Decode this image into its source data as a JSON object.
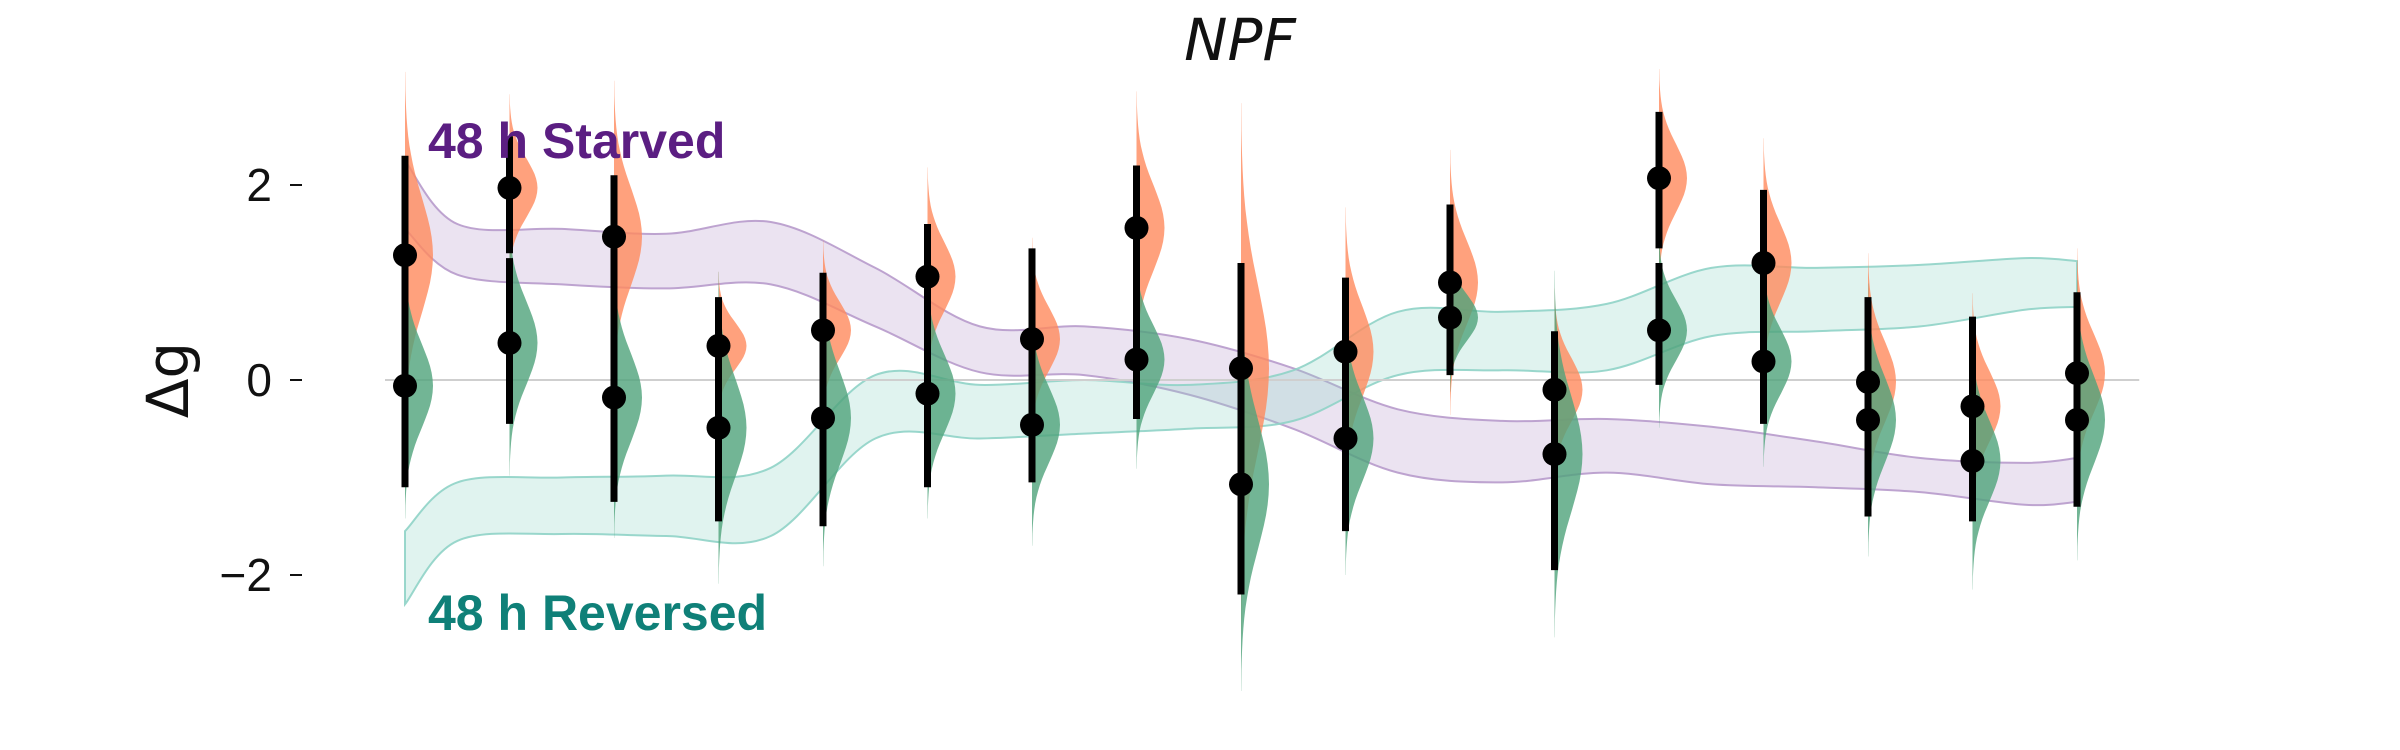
{
  "chart_data": {
    "type": "scatter",
    "title": "NPF",
    "xlabel": "",
    "ylabel": "Δg",
    "ylim": [
      -3.0,
      3.0
    ],
    "xlim": [
      0.0,
      17.5
    ],
    "yticks": [
      -2,
      0,
      2
    ],
    "ytick_labels": [
      "−2",
      "0",
      "2"
    ],
    "grid": false,
    "zero_line": true,
    "colors": {
      "starved_band": "#b79acb",
      "reversed_band": "#8fd3c6",
      "starved_label": "#5b1e82",
      "reversed_label": "#0f8078",
      "orange_density": "#ff8a5c",
      "green_density": "#4fa37a",
      "points": "#000000"
    },
    "annotations": [
      {
        "text": "48 h Starved",
        "color": "#5b1e82"
      },
      {
        "text": "48 h Reversed",
        "color": "#0f8078"
      }
    ],
    "series": [
      {
        "name": "48 h Starved",
        "color": "#ff8a5c",
        "x": [
          1,
          2,
          3,
          4,
          5,
          6,
          7,
          8,
          9,
          10,
          11,
          12,
          13,
          14,
          15,
          16,
          17
        ],
        "y": [
          1.28,
          1.97,
          1.47,
          0.35,
          0.51,
          1.06,
          0.42,
          1.56,
          0.12,
          0.29,
          1.0,
          -0.1,
          2.07,
          1.2,
          -0.02,
          -0.27,
          0.07
        ],
        "ci": [
          [
            -0.05,
            2.3
          ],
          [
            1.3,
            2.5
          ],
          [
            0.1,
            2.1
          ],
          [
            -0.1,
            0.85
          ],
          [
            -0.05,
            1.1
          ],
          [
            0.2,
            1.6
          ],
          [
            0.05,
            1.35
          ],
          [
            0.45,
            2.2
          ],
          [
            -2.2,
            1.2
          ],
          [
            -0.8,
            1.05
          ],
          [
            0.1,
            1.8
          ],
          [
            -0.8,
            0.5
          ],
          [
            1.35,
            2.75
          ],
          [
            0.35,
            1.95
          ],
          [
            -0.8,
            0.85
          ],
          [
            -0.8,
            0.65
          ],
          [
            -0.7,
            0.9
          ]
        ]
      },
      {
        "name": "48 h Reversed",
        "color": "#4fa37a",
        "x": [
          1,
          2,
          3,
          4,
          5,
          6,
          7,
          8,
          9,
          10,
          11,
          12,
          13,
          14,
          15,
          16,
          17
        ],
        "y": [
          -0.06,
          0.38,
          -0.18,
          -0.49,
          -0.39,
          -0.14,
          -0.46,
          0.21,
          -1.07,
          -0.6,
          0.64,
          -0.76,
          0.51,
          0.19,
          -0.41,
          -0.83,
          -0.41
        ],
        "ci": [
          [
            -1.1,
            0.6
          ],
          [
            -0.45,
            1.25
          ],
          [
            -1.25,
            0.55
          ],
          [
            -1.45,
            0.55
          ],
          [
            -1.5,
            0.4
          ],
          [
            -1.1,
            0.5
          ],
          [
            -1.05,
            0.5
          ],
          [
            -0.4,
            1.0
          ],
          [
            -2.2,
            0.45
          ],
          [
            -1.55,
            0.2
          ],
          [
            0.05,
            1.0
          ],
          [
            -1.95,
            0.4
          ],
          [
            -0.05,
            1.2
          ],
          [
            -0.45,
            0.9
          ],
          [
            -1.4,
            0.35
          ],
          [
            -1.45,
            0.2
          ],
          [
            -1.3,
            0.5
          ]
        ]
      }
    ],
    "bands": [
      {
        "name": "48 h Starved",
        "x": [
          1.0,
          1.5,
          2.5,
          3.5,
          4.5,
          5.5,
          6.5,
          7.5,
          8.5,
          9.5,
          10.5,
          11.5,
          12.5,
          13.5,
          14.5,
          15.5,
          16.5,
          17.0
        ],
        "upper": [
          2.25,
          1.6,
          1.55,
          1.5,
          1.62,
          1.15,
          0.55,
          0.55,
          0.42,
          0.12,
          -0.3,
          -0.42,
          -0.4,
          -0.48,
          -0.63,
          -0.8,
          -0.85,
          -0.8
        ],
        "lower": [
          1.55,
          1.08,
          0.98,
          0.94,
          0.98,
          0.55,
          0.08,
          0.05,
          -0.15,
          -0.5,
          -0.95,
          -1.05,
          -0.95,
          -1.07,
          -1.1,
          -1.15,
          -1.28,
          -1.25
        ]
      },
      {
        "name": "48 h Reversed",
        "x": [
          1.0,
          1.5,
          2.5,
          3.5,
          4.5,
          5.5,
          6.5,
          7.5,
          8.5,
          9.5,
          10.5,
          11.5,
          12.5,
          13.5,
          14.5,
          15.5,
          16.5,
          17.0
        ],
        "upper": [
          -1.55,
          -1.05,
          -1.0,
          -0.98,
          -0.9,
          0.05,
          -0.05,
          0.0,
          -0.05,
          0.1,
          0.7,
          0.7,
          0.78,
          1.15,
          1.15,
          1.18,
          1.25,
          1.22
        ],
        "lower": [
          -2.3,
          -1.65,
          -1.58,
          -1.6,
          -1.6,
          -0.6,
          -0.6,
          -0.55,
          -0.5,
          -0.42,
          0.05,
          0.1,
          0.1,
          0.45,
          0.5,
          0.55,
          0.72,
          0.75
        ]
      }
    ]
  }
}
